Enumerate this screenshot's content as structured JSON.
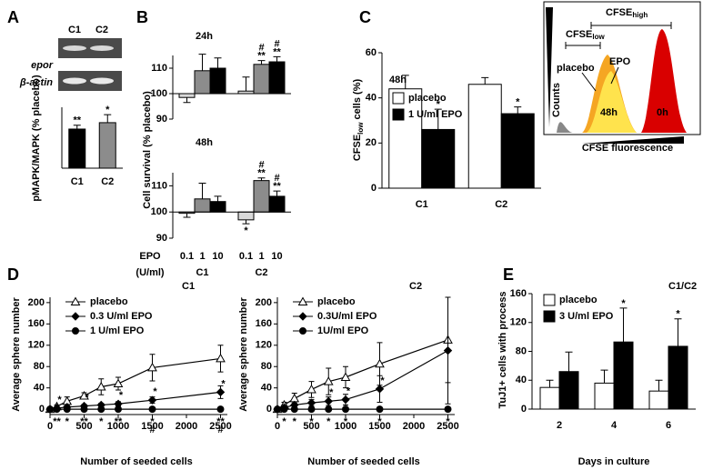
{
  "panel_labels": [
    "A",
    "B",
    "C",
    "D",
    "E"
  ],
  "gel": {
    "lanes": [
      "C1",
      "C2"
    ],
    "rows": [
      "epor",
      "β-actin"
    ]
  },
  "inset": {
    "gates": [
      {
        "name": "CFSE",
        "sub": "high"
      },
      {
        "name": "CFSE",
        "sub": "low"
      }
    ],
    "labels": [
      "placebo",
      "EPO",
      "48h",
      "0h"
    ],
    "ylabel": "Counts",
    "xlabel": "CFSE fluorescence"
  },
  "chart_data": [
    {
      "type": "bar",
      "ylabel": "pMAPK/MAPK (% placebo)",
      "categories": [
        "C1",
        "C2"
      ],
      "values": [
        122,
        142
      ],
      "errors": [
        12,
        25
      ],
      "colors": [
        "#000000",
        "#8c8c8c"
      ],
      "annotations": [
        [
          "**"
        ],
        [
          "*"
        ]
      ],
      "ylim": [
        0,
        190
      ]
    },
    {
      "type": "bar",
      "title": "24h",
      "ylabel": "Cell survival (% placebo)",
      "baseline": 100,
      "ylim": [
        90,
        115
      ],
      "yticks": [
        90,
        100,
        110
      ],
      "series": [
        {
          "color": "#d9d9d9",
          "values": [
            98.5,
            101
          ],
          "errors": [
            2,
            5.5
          ]
        },
        {
          "color": "#8c8c8c",
          "values": [
            109,
            111.5
          ],
          "errors": [
            6.5,
            1.5
          ],
          "annotations": [
            null,
            [
              "#",
              "**"
            ]
          ]
        },
        {
          "color": "#000000",
          "values": [
            110,
            112.5
          ],
          "errors": [
            4,
            2
          ],
          "annotations": [
            null,
            [
              "#",
              "**"
            ]
          ]
        }
      ]
    },
    {
      "type": "bar",
      "title": "48h",
      "xlabel": "EPO",
      "xunit": "(U/ml)",
      "categories": [
        "C1",
        "C2"
      ],
      "baseline": 100,
      "ylim": [
        90,
        115
      ],
      "yticks": [
        90,
        100,
        110
      ],
      "series": [
        {
          "name": "0.1",
          "color": "#d9d9d9",
          "values": [
            99.5,
            97
          ],
          "errors": [
            1.5,
            1.5
          ],
          "annotations": [
            null,
            [
              "*"
            ]
          ]
        },
        {
          "name": "1",
          "color": "#8c8c8c",
          "values": [
            105,
            112
          ],
          "errors": [
            6,
            1
          ],
          "annotations": [
            null,
            [
              "#",
              "**"
            ]
          ]
        },
        {
          "name": "10",
          "color": "#000000",
          "values": [
            104,
            106
          ],
          "errors": [
            2,
            2
          ],
          "annotations": [
            null,
            [
              "#",
              "**"
            ]
          ]
        }
      ]
    },
    {
      "type": "bar",
      "title": "48h",
      "ylabel": {
        "main": "CFSE",
        "sub": "low",
        "rest": "cells (%)"
      },
      "categories": [
        "C1",
        "C2"
      ],
      "ylim": [
        0,
        60
      ],
      "yticks": [
        0,
        20,
        40,
        60
      ],
      "legend": "upper left",
      "series": [
        {
          "name": "placebo",
          "color": "#ffffff",
          "values": [
            44,
            46
          ],
          "errors": [
            6,
            3
          ]
        },
        {
          "name": "1 U/ml EPO",
          "color": "#000000",
          "values": [
            26,
            33
          ],
          "errors": [
            9,
            3
          ],
          "annotations": [
            [
              "*"
            ],
            [
              "*"
            ]
          ]
        }
      ]
    },
    {
      "type": "line",
      "title": "C1",
      "xlabel": "Number of seeded cells",
      "ylabel": "Average sphere number",
      "x": [
        0,
        100,
        250,
        500,
        750,
        1000,
        1500,
        2500
      ],
      "xlim": [
        0,
        2600
      ],
      "xticks": [
        0,
        500,
        1000,
        1500,
        2000,
        2500
      ],
      "ylim": [
        -10,
        210
      ],
      "yticks": [
        0,
        40,
        80,
        120,
        160,
        200
      ],
      "legend": "upper left",
      "series": [
        {
          "name": "placebo",
          "color": "#000000",
          "marker": "triangle-open",
          "values": [
            0,
            5,
            15,
            25,
            42,
            48,
            78,
            95
          ],
          "errors": [
            0,
            3,
            8,
            6,
            15,
            12,
            25,
            25
          ]
        },
        {
          "name": "0.3 U/ml EPO",
          "color": "#000000",
          "marker": "diamond",
          "values": [
            0,
            2,
            4,
            6,
            8,
            10,
            17,
            32
          ],
          "errors": [
            0,
            1,
            2,
            3,
            3,
            4,
            6,
            12
          ],
          "annotations": [
            null,
            [
              "*"
            ],
            null,
            [
              "*"
            ],
            null,
            [
              "*"
            ],
            [
              "*"
            ],
            [
              "*"
            ]
          ]
        },
        {
          "name": "1 U/ml EPO",
          "color": "#000000",
          "marker": "circle",
          "values": [
            0,
            0,
            0,
            0,
            0,
            0,
            0,
            0
          ],
          "annotations": [
            null,
            [
              "**"
            ],
            [
              "*"
            ],
            [
              "**"
            ],
            [
              "*"
            ],
            [
              "**"
            ],
            [
              "*",
              "#"
            ],
            [
              "**",
              "#"
            ]
          ]
        }
      ]
    },
    {
      "type": "line",
      "title": "C2",
      "xlabel": "Number of seeded cells",
      "ylabel": "Average sphere number",
      "x": [
        0,
        100,
        250,
        500,
        750,
        1000,
        1500,
        2500
      ],
      "xlim": [
        0,
        2600
      ],
      "xticks": [
        0,
        500,
        1000,
        1500,
        2000,
        2500
      ],
      "ylim": [
        -10,
        210
      ],
      "yticks": [
        0,
        40,
        80,
        120,
        160,
        200
      ],
      "legend": "upper left",
      "series": [
        {
          "name": "placebo",
          "color": "#000000",
          "marker": "triangle-open",
          "values": [
            0,
            8,
            20,
            37,
            52,
            60,
            85,
            130
          ],
          "errors": [
            0,
            5,
            10,
            15,
            25,
            20,
            40,
            80
          ]
        },
        {
          "name": "0.3U/ml EPO",
          "color": "#000000",
          "marker": "diamond",
          "values": [
            0,
            3,
            8,
            12,
            15,
            18,
            38,
            110
          ],
          "errors": [
            0,
            2,
            4,
            6,
            8,
            10,
            25,
            100
          ],
          "annotations": [
            null,
            null,
            null,
            null,
            [
              "*"
            ],
            [
              "*"
            ],
            [
              "*"
            ],
            null
          ]
        },
        {
          "name": "1U/ml EPO",
          "color": "#000000",
          "marker": "circle",
          "values": [
            0,
            0,
            0,
            0,
            0,
            0,
            0,
            0
          ],
          "annotations": [
            null,
            [
              "*"
            ],
            [
              "*"
            ],
            [
              "*"
            ],
            [
              "*"
            ],
            [
              "*"
            ],
            [
              "*"
            ],
            [
              "*"
            ]
          ]
        }
      ]
    },
    {
      "type": "bar",
      "title": "C1/C2",
      "xlabel": "Days in culture",
      "ylabel": "TuJ1+ cells with process",
      "categories": [
        "2",
        "4",
        "6"
      ],
      "ylim": [
        0,
        160
      ],
      "yticks": [
        0,
        40,
        80,
        120,
        160
      ],
      "legend": "upper left",
      "series": [
        {
          "name": "placebo",
          "color": "#ffffff",
          "values": [
            30,
            36,
            25
          ],
          "errors": [
            10,
            18,
            15
          ]
        },
        {
          "name": "3 U/ml EPO",
          "color": "#000000",
          "values": [
            52,
            93,
            87
          ],
          "errors": [
            27,
            47,
            38
          ],
          "annotations": [
            null,
            [
              "*"
            ],
            [
              "*"
            ]
          ]
        }
      ]
    }
  ]
}
